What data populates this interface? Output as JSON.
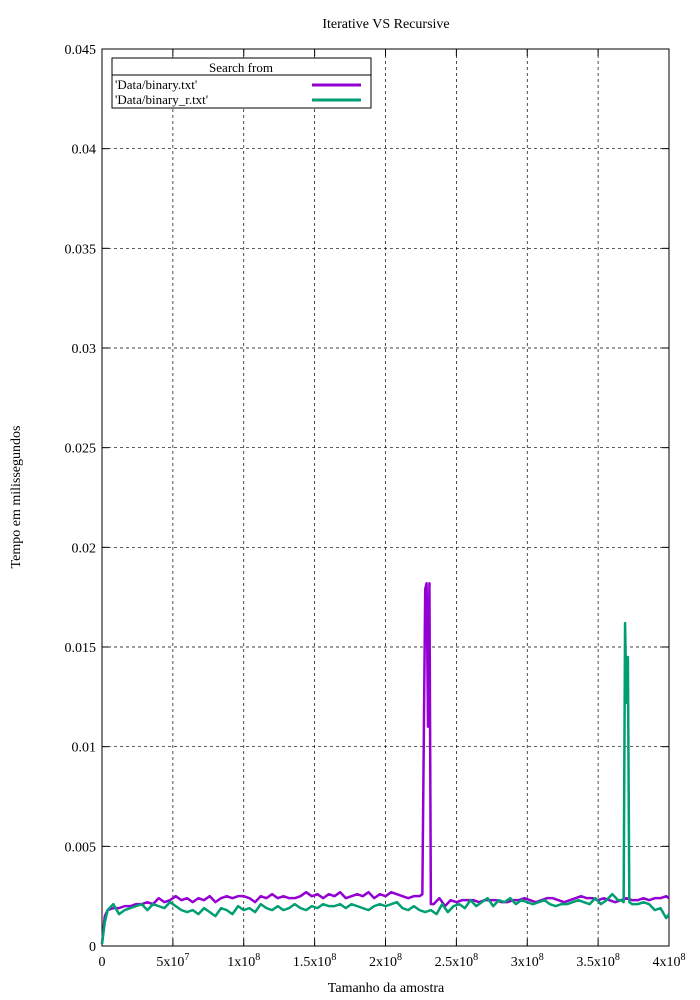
{
  "chart_data": {
    "type": "line",
    "title": "Iterative VS Recursive",
    "xlabel": "Tamanho da amostra",
    "ylabel": "Tempo em milissegundos",
    "xlim": [
      0,
      400000000
    ],
    "ylim": [
      0,
      0.045
    ],
    "grid": true,
    "legend": {
      "title": "Search from",
      "placement": "top-left"
    },
    "x_ticks": [
      {
        "value": 0,
        "mant": "0",
        "exp": ""
      },
      {
        "value": 50000000,
        "mant": "5x10",
        "exp": "7"
      },
      {
        "value": 100000000,
        "mant": "1x10",
        "exp": "8"
      },
      {
        "value": 150000000,
        "mant": "1.5x10",
        "exp": "8"
      },
      {
        "value": 200000000,
        "mant": "2x10",
        "exp": "8"
      },
      {
        "value": 250000000,
        "mant": "2.5x10",
        "exp": "8"
      },
      {
        "value": 300000000,
        "mant": "3x10",
        "exp": "8"
      },
      {
        "value": 350000000,
        "mant": "3.5x10",
        "exp": "8"
      },
      {
        "value": 400000000,
        "mant": "4x10",
        "exp": "8"
      }
    ],
    "y_ticks": [
      {
        "value": 0,
        "label": "0"
      },
      {
        "value": 0.005,
        "label": "0.005"
      },
      {
        "value": 0.01,
        "label": "0.01"
      },
      {
        "value": 0.015,
        "label": "0.015"
      },
      {
        "value": 0.02,
        "label": "0.02"
      },
      {
        "value": 0.025,
        "label": "0.025"
      },
      {
        "value": 0.03,
        "label": "0.03"
      },
      {
        "value": 0.035,
        "label": "0.035"
      },
      {
        "value": 0.04,
        "label": "0.04"
      },
      {
        "value": 0.045,
        "label": "0.045"
      }
    ],
    "series": [
      {
        "name": "'Data/binary.txt'",
        "color": "#9400d3",
        "x": [
          0,
          2000000,
          4000000,
          8000000,
          12000000,
          16000000,
          20000000,
          24000000,
          28000000,
          32000000,
          36000000,
          40000000,
          44000000,
          48000000,
          52000000,
          56000000,
          60000000,
          64000000,
          68000000,
          72000000,
          76000000,
          80000000,
          84000000,
          88000000,
          92000000,
          96000000,
          100000000,
          104000000,
          108000000,
          112000000,
          116000000,
          120000000,
          124000000,
          128000000,
          132000000,
          136000000,
          140000000,
          144000000,
          148000000,
          152000000,
          156000000,
          160000000,
          164000000,
          168000000,
          172000000,
          176000000,
          180000000,
          184000000,
          188000000,
          192000000,
          196000000,
          200000000,
          204000000,
          208000000,
          212000000,
          216000000,
          220000000,
          224000000,
          226000000,
          228000000,
          229000000,
          230000000,
          231000000,
          232000000,
          234000000,
          238000000,
          242000000,
          246000000,
          250000000,
          254000000,
          258000000,
          262000000,
          266000000,
          270000000,
          274000000,
          278000000,
          282000000,
          286000000,
          290000000,
          294000000,
          298000000,
          302000000,
          306000000,
          310000000,
          314000000,
          318000000,
          322000000,
          326000000,
          330000000,
          334000000,
          338000000,
          342000000,
          346000000,
          350000000,
          354000000,
          358000000,
          362000000,
          366000000,
          370000000,
          374000000,
          378000000,
          382000000,
          386000000,
          390000000,
          394000000,
          398000000,
          400000000
        ],
        "values": [
          0.0001,
          0.0015,
          0.0018,
          0.0019,
          0.0019,
          0.002,
          0.002,
          0.0021,
          0.0021,
          0.0022,
          0.0021,
          0.0024,
          0.0022,
          0.0023,
          0.0025,
          0.0023,
          0.0024,
          0.0022,
          0.0024,
          0.0023,
          0.0025,
          0.0022,
          0.0024,
          0.0025,
          0.0024,
          0.0025,
          0.0025,
          0.0024,
          0.0022,
          0.0025,
          0.0024,
          0.0026,
          0.0024,
          0.0025,
          0.0024,
          0.0024,
          0.0025,
          0.0027,
          0.0025,
          0.0026,
          0.0024,
          0.0026,
          0.0025,
          0.0027,
          0.0024,
          0.0025,
          0.0026,
          0.0025,
          0.0027,
          0.0024,
          0.0026,
          0.0025,
          0.0027,
          0.0026,
          0.0025,
          0.0024,
          0.0025,
          0.0025,
          0.0026,
          0.0179,
          0.0182,
          0.011,
          0.0182,
          0.0021,
          0.0021,
          0.0024,
          0.002,
          0.0023,
          0.0022,
          0.0023,
          0.0023,
          0.0023,
          0.0022,
          0.0023,
          0.0023,
          0.0023,
          0.0022,
          0.0022,
          0.0023,
          0.0023,
          0.0024,
          0.0023,
          0.0022,
          0.0023,
          0.0024,
          0.0024,
          0.0023,
          0.0022,
          0.0023,
          0.0024,
          0.0025,
          0.0024,
          0.0024,
          0.0023,
          0.0024,
          0.0023,
          0.0022,
          0.0023,
          0.0024,
          0.0023,
          0.0023,
          0.0024,
          0.0023,
          0.0024,
          0.0024,
          0.0025,
          0.0024
        ]
      },
      {
        "name": "'Data/binary_r.txt'",
        "color": "#009e73",
        "x": [
          0,
          2000000,
          4000000,
          8000000,
          12000000,
          16000000,
          20000000,
          24000000,
          28000000,
          32000000,
          36000000,
          40000000,
          44000000,
          48000000,
          52000000,
          56000000,
          60000000,
          64000000,
          68000000,
          72000000,
          76000000,
          80000000,
          84000000,
          88000000,
          92000000,
          96000000,
          100000000,
          104000000,
          108000000,
          112000000,
          116000000,
          120000000,
          124000000,
          128000000,
          132000000,
          136000000,
          140000000,
          144000000,
          148000000,
          152000000,
          156000000,
          160000000,
          164000000,
          168000000,
          172000000,
          176000000,
          180000000,
          184000000,
          188000000,
          192000000,
          196000000,
          200000000,
          204000000,
          208000000,
          212000000,
          216000000,
          220000000,
          224000000,
          228000000,
          232000000,
          236000000,
          240000000,
          244000000,
          248000000,
          252000000,
          256000000,
          260000000,
          264000000,
          268000000,
          272000000,
          276000000,
          280000000,
          284000000,
          288000000,
          292000000,
          296000000,
          300000000,
          304000000,
          308000000,
          312000000,
          316000000,
          320000000,
          324000000,
          328000000,
          332000000,
          336000000,
          340000000,
          344000000,
          348000000,
          352000000,
          356000000,
          360000000,
          364000000,
          366000000,
          368000000,
          369000000,
          370000000,
          371000000,
          372000000,
          374000000,
          378000000,
          382000000,
          386000000,
          390000000,
          394000000,
          398000000,
          400000000
        ],
        "values": [
          0.0001,
          0.0012,
          0.0018,
          0.0021,
          0.0016,
          0.0018,
          0.0019,
          0.002,
          0.0021,
          0.0018,
          0.0021,
          0.002,
          0.0019,
          0.0022,
          0.002,
          0.0018,
          0.0017,
          0.0018,
          0.0016,
          0.0019,
          0.0017,
          0.0015,
          0.0019,
          0.0018,
          0.0016,
          0.002,
          0.0018,
          0.0019,
          0.0017,
          0.0021,
          0.0019,
          0.0018,
          0.002,
          0.0018,
          0.0019,
          0.0021,
          0.0019,
          0.0018,
          0.002,
          0.0019,
          0.0021,
          0.002,
          0.002,
          0.0021,
          0.0019,
          0.0021,
          0.002,
          0.0019,
          0.0018,
          0.002,
          0.0021,
          0.002,
          0.0021,
          0.0022,
          0.0019,
          0.0018,
          0.002,
          0.0018,
          0.0017,
          0.0018,
          0.0016,
          0.0021,
          0.0017,
          0.002,
          0.0021,
          0.0019,
          0.0023,
          0.002,
          0.0022,
          0.0024,
          0.002,
          0.0023,
          0.0022,
          0.0024,
          0.0021,
          0.0023,
          0.0022,
          0.0021,
          0.0022,
          0.0023,
          0.0021,
          0.002,
          0.0021,
          0.0021,
          0.0022,
          0.0023,
          0.0022,
          0.0021,
          0.0024,
          0.0021,
          0.0023,
          0.0026,
          0.0023,
          0.0023,
          0.0022,
          0.0162,
          0.0122,
          0.0145,
          0.0022,
          0.0021,
          0.0021,
          0.0022,
          0.0021,
          0.0018,
          0.0019,
          0.0014,
          0.0016
        ]
      }
    ]
  }
}
